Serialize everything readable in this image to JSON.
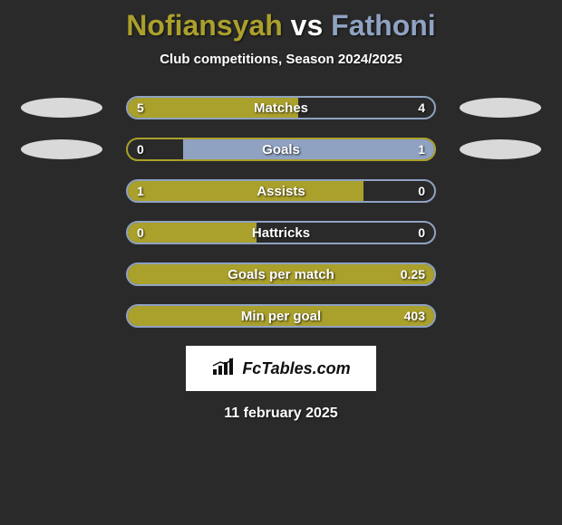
{
  "colors": {
    "player1": "#aaa02c",
    "player2": "#8fa2c2",
    "background": "#2a2a2a",
    "marker_gray": "#d9d9d9",
    "text": "#ffffff"
  },
  "title": {
    "player1": "Nofiansyah",
    "vs": "vs",
    "player2": "Fathoni",
    "p1_color": "#aaa02c",
    "vs_color": "#ffffff",
    "p2_color": "#8fa2c2"
  },
  "subtitle": "Club competitions, Season 2024/2025",
  "stats": [
    {
      "label": "Matches",
      "left_val": "5",
      "right_val": "4",
      "left_pct": 55.5,
      "right_pct": 44.5,
      "border_color": "#8fa2c2",
      "left_fill": "#aaa02c",
      "right_fill": "transparent",
      "show_markers": true,
      "left_marker": "#d9d9d9",
      "right_marker": "#d9d9d9"
    },
    {
      "label": "Goals",
      "left_val": "0",
      "right_val": "1",
      "left_pct": 18,
      "right_pct": 82,
      "border_color": "#aaa02c",
      "left_fill": "transparent",
      "right_fill": "#8fa2c2",
      "show_markers": true,
      "left_marker": "#d9d9d9",
      "right_marker": "#d9d9d9"
    },
    {
      "label": "Assists",
      "left_val": "1",
      "right_val": "0",
      "left_pct": 77,
      "right_pct": 23,
      "border_color": "#8fa2c2",
      "left_fill": "#aaa02c",
      "right_fill": "transparent",
      "show_markers": false
    },
    {
      "label": "Hattricks",
      "left_val": "0",
      "right_val": "0",
      "left_pct": 42,
      "right_pct": 0,
      "border_color": "#8fa2c2",
      "left_fill": "#aaa02c",
      "right_fill": "transparent",
      "show_markers": false
    },
    {
      "label": "Goals per match",
      "left_val": "",
      "right_val": "0.25",
      "left_pct": 100,
      "right_pct": 0,
      "border_color": "#8fa2c2",
      "left_fill": "#aaa02c",
      "right_fill": "transparent",
      "show_markers": false
    },
    {
      "label": "Min per goal",
      "left_val": "",
      "right_val": "403",
      "left_pct": 100,
      "right_pct": 0,
      "border_color": "#8fa2c2",
      "left_fill": "#aaa02c",
      "right_fill": "transparent",
      "show_markers": false
    }
  ],
  "footer": {
    "brand": "FcTables.com",
    "date": "11 february 2025"
  }
}
